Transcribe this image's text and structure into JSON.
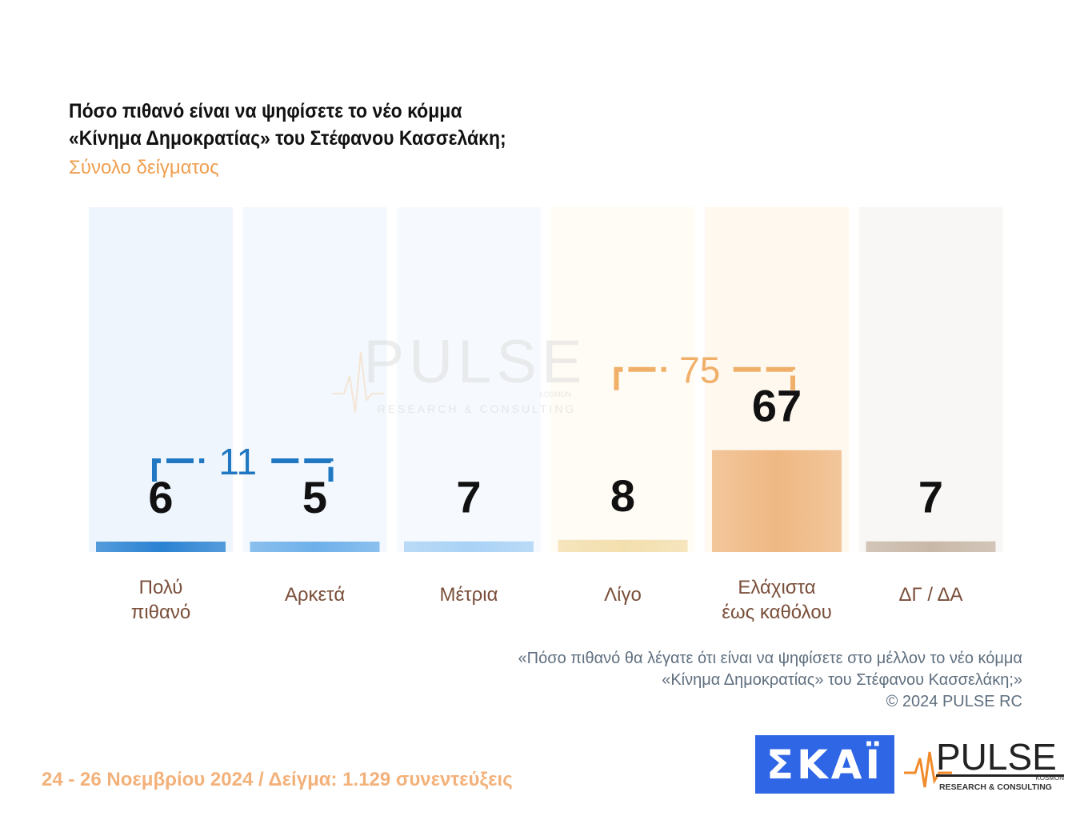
{
  "title_line1": "Πόσο πιθανό είναι να ψηφίσετε το νέο κόμμα",
  "title_line2": "«Κίνημα Δημοκρατίας» του Στέφανου Κασσελάκη;",
  "subtitle": "Σύνολο δείγματος",
  "chart_data": {
    "type": "bar",
    "categories": [
      [
        "Πολύ",
        "πιθανό"
      ],
      [
        "Αρκετά"
      ],
      [
        "Μέτρια"
      ],
      [
        "Λίγο"
      ],
      [
        "Ελάχιστα",
        "έως καθόλου"
      ],
      [
        "ΔΓ / ΔΑ"
      ]
    ],
    "values": [
      6,
      5,
      7,
      8,
      67,
      7
    ],
    "groups": [
      {
        "label": "11",
        "from": 0,
        "to": 1,
        "color": "#1f78c1"
      },
      {
        "label": "75",
        "from": 3,
        "to": 4,
        "color": "#f0b06a"
      }
    ],
    "colors": {
      "bar_fills": [
        "#2a82d2",
        "#6eb0ea",
        "#a9d2f5",
        "#f3dfae",
        "#efb883",
        "#c8b8a8"
      ],
      "column_bgs": [
        "#eef5fc",
        "#f2f8fd",
        "#f6fafe",
        "#fffcf5",
        "#fff8ef",
        "#f8f7f6"
      ],
      "value_color": "#111111",
      "label_color": "#7a4f3a"
    }
  },
  "watermark": {
    "brand": "PULSE",
    "tagline": "RESEARCH & CONSULTING",
    "sub": "KOSMON"
  },
  "footnote": {
    "line1": "«Πόσο πιθανό θα λέγατε ότι είναι να ψηφίσετε στο μέλλον το νέο κόμμα",
    "line2": "«Κίνημα Δημοκρατίας» του Στέφανου Κασσελάκη;»",
    "line3": "©  2024  PULSE RC"
  },
  "dates_sample": "24 - 26 Νοεμβρίου 2024  /  Δείγμα:  1.129 συνεντεύξεις",
  "logos": {
    "skai": "ΣΚΑΪ",
    "pulse": "PULSE",
    "pulse_sub": "KOSMON",
    "pulse_tagline": "RESEARCH & CONSULTING"
  }
}
